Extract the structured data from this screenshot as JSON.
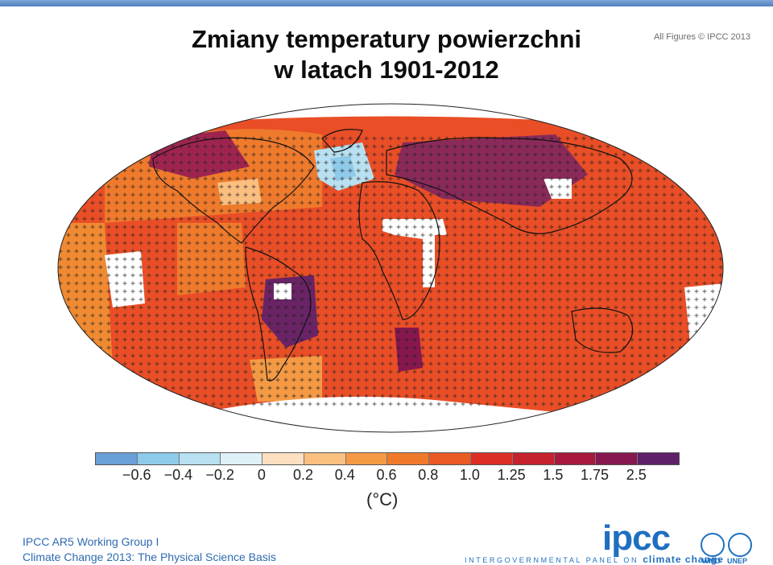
{
  "title_line1": "Zmiany temperatury powierzchni",
  "title_line2": "w latach 1901-2012",
  "credit": "All Figures © IPCC 2013",
  "legend": {
    "colors": [
      "#6a9fd8",
      "#8ecae9",
      "#b8e0f0",
      "#dff0f7",
      "#fde0c2",
      "#fbbf80",
      "#f59a44",
      "#ef7a2c",
      "#e95a25",
      "#dc2e24",
      "#c5212e",
      "#a71a3d",
      "#86174f",
      "#5e2068"
    ],
    "tick_labels": [
      "−0.6",
      "−0.4",
      "−0.2",
      "0",
      "0.2",
      "0.4",
      "0.6",
      "0.8",
      "1.0",
      "1.25",
      "1.5",
      "1.75",
      "2.5"
    ],
    "unit": "(°C)"
  },
  "footer": {
    "line1": "IPCC AR5 Working Group I",
    "line2": "Climate Change 2013:  The Physical Science Basis"
  },
  "logo": {
    "text": "ipcc",
    "tagline_prefix": "INTERGOVERNMENTAL PANEL ON",
    "tagline_emphasis": "climate change",
    "wmo": "WMO",
    "unep": "UNEP"
  },
  "map_colors": {
    "ocean_base": "#e94e26",
    "land_outline": "#111111",
    "missing": "#ffffff"
  }
}
